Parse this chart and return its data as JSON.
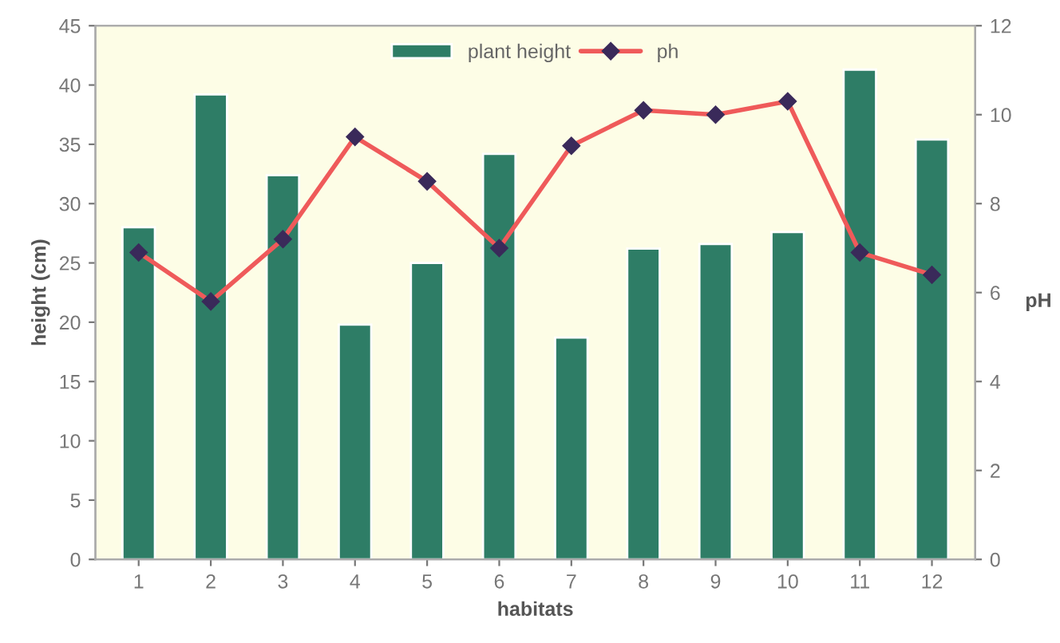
{
  "chart_data": {
    "type": "bar",
    "xlabel": "habitats",
    "ylabel": "height (cm)",
    "y2label": "pH",
    "categories": [
      "1",
      "2",
      "3",
      "4",
      "5",
      "6",
      "7",
      "8",
      "9",
      "10",
      "11",
      "12"
    ],
    "series": [
      {
        "name": "plant height",
        "color": "#2e7d66",
        "values": [
          28,
          39.2,
          32.4,
          19.8,
          25,
          34.2,
          18.7,
          26.2,
          26.6,
          27.6,
          41.3,
          35.4
        ]
      },
      {
        "name": "ph",
        "type": "line",
        "axis": "y2",
        "color": "#ef5a5a",
        "marker": "diamond",
        "values": [
          6.9,
          5.8,
          7.2,
          9.5,
          8.5,
          7.0,
          9.3,
          10.1,
          10.0,
          10.3,
          6.9,
          6.4
        ]
      }
    ],
    "ylim": [
      0,
      45
    ],
    "yticks": [
      0,
      5,
      10,
      15,
      20,
      25,
      30,
      35,
      40,
      45
    ],
    "y2lim": [
      0,
      12
    ],
    "y2ticks": [
      0,
      2,
      4,
      6,
      8,
      10,
      12
    ],
    "legend": "top",
    "grid": false
  }
}
